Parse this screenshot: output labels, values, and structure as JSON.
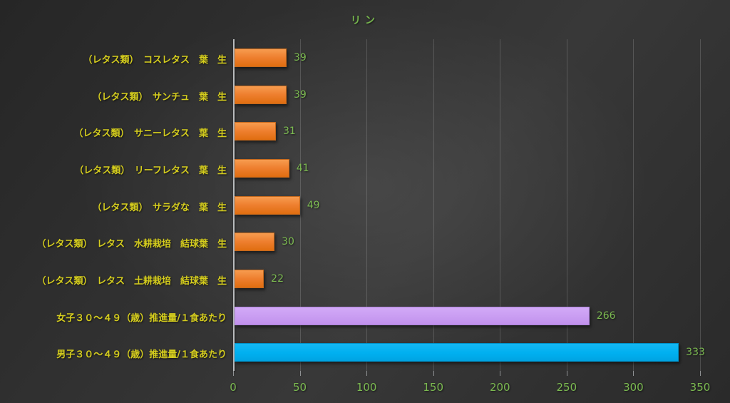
{
  "title": "リン",
  "colors": {
    "background_base": "#323232",
    "title_text": "#76b64d",
    "category_label_text": "#d5cd1e",
    "value_label_text": "#7cba51",
    "axis_tick_text": "#7cba51",
    "bar_orange": "#ee7f2f",
    "bar_purple": "#c99df2",
    "bar_blue": "#00b0f0",
    "gridline": "#5a5a5a",
    "axis_line": "#b9bbbd"
  },
  "chart_data": {
    "type": "bar",
    "orientation": "horizontal",
    "title": "リン",
    "categories": [
      "（レタス類）　コスレタス　葉　生",
      "（レタス類）　サンチュ　葉　生",
      "（レタス類）　サニーレタス　葉　生",
      "（レタス類）　リーフレタス　葉　生",
      "（レタス類）　サラダな　葉　生",
      "（レタス類）　レタス　水耕栽培　結球葉　生",
      "（レタス類）　レタス　土耕栽培　結球葉　生",
      "女子３０～４９（歳）推進量/１食あたり",
      "男子３０～４９（歳）推進量/１食あたり"
    ],
    "values": [
      39,
      39,
      31,
      41,
      49,
      30,
      22,
      266,
      333
    ],
    "data_labels": [
      "39",
      "39",
      "31",
      "41",
      "49",
      "30",
      "22",
      "266",
      "333"
    ],
    "bar_styles": [
      "orange",
      "orange",
      "orange",
      "orange",
      "orange",
      "orange",
      "orange",
      "purple",
      "blue"
    ],
    "xlabel": "",
    "ylabel": "",
    "xlim": [
      0,
      350
    ],
    "x_ticks": [
      0,
      50,
      100,
      150,
      200,
      250,
      300,
      350
    ],
    "grid": true,
    "legend": false
  }
}
